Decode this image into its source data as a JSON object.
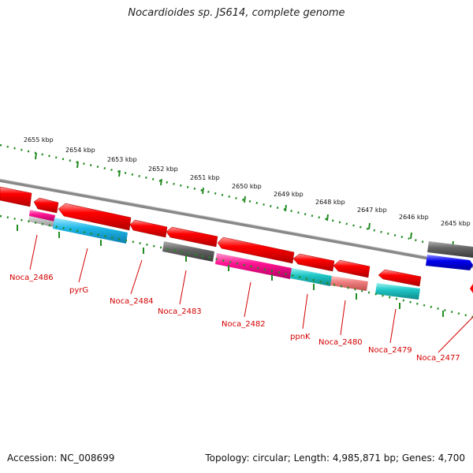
{
  "title": "Nocardioides sp. JS614, complete genome",
  "footer": {
    "accession": "Accession: NC_008699",
    "summary": "Topology: circular; Length: 4,985,871 bp; Genes: 4,700"
  },
  "kbp_labels": [
    "2655 kbp",
    "2654 kbp",
    "2653 kbp",
    "2652 kbp",
    "2651 kbp",
    "2650 kbp",
    "2649 kbp",
    "2648 kbp",
    "2647 kbp",
    "2646 kbp",
    "2645 kbp"
  ],
  "gene_labels": [
    "Noca_2486",
    "pyrG",
    "Noca_2484",
    "Noca_2483",
    "Noca_2482",
    "ppnK",
    "Noca_2480",
    "Noca_2479",
    "Noca_2477"
  ],
  "colors": {
    "cds": "#ff0000",
    "backbone": "#808080",
    "ticks": "#228b22",
    "label": "#d40000",
    "cyan": "#1fb8e8",
    "magenta": "#ff1493",
    "teal": "#20c0c0",
    "gray_gene": "#666666",
    "blue_gene": "#0000ee",
    "pink_gene": "#f08080"
  }
}
